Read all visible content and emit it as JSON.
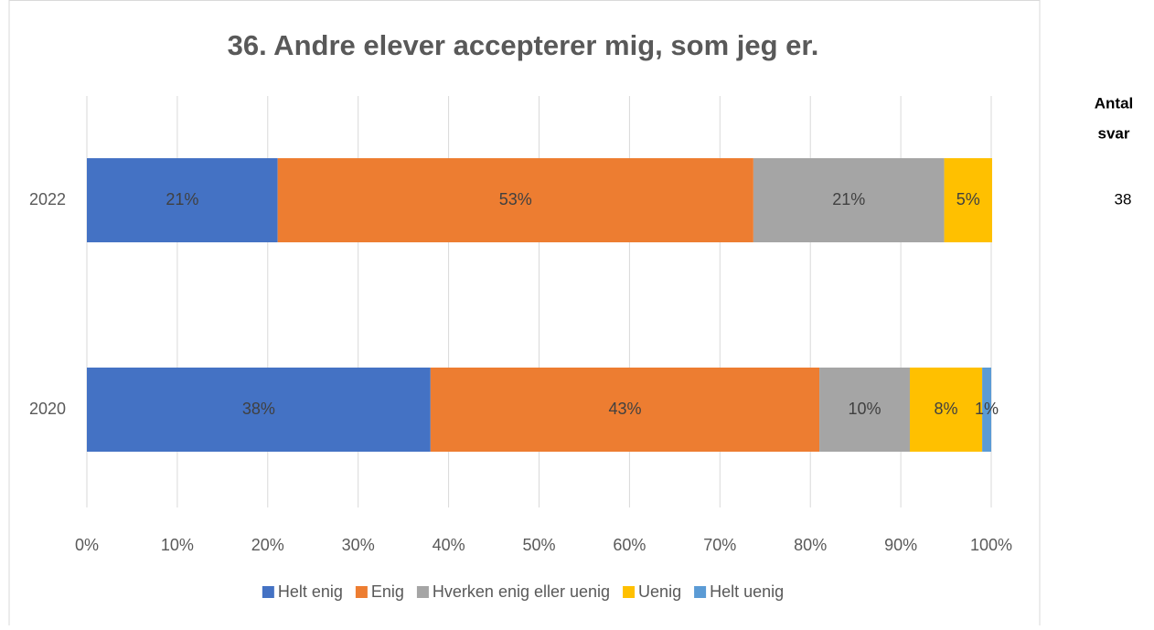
{
  "chart_data": {
    "type": "stacked_bar_horizontal",
    "title": "36. Andre elever accepterer mig, som jeg er.",
    "categories": [
      "2022",
      "2020"
    ],
    "series": [
      {
        "name": "Helt enig",
        "color": "#4472c4",
        "values": [
          21.1,
          38
        ],
        "value_labels": [
          "21%",
          "38%"
        ]
      },
      {
        "name": "Enig",
        "color": "#ed7d31",
        "values": [
          52.6,
          43
        ],
        "value_labels": [
          "53%",
          "43%"
        ]
      },
      {
        "name": "Hverken enig eller uenig",
        "color": "#a5a5a5",
        "values": [
          21.1,
          10
        ],
        "value_labels": [
          "21%",
          "10%"
        ]
      },
      {
        "name": "Uenig",
        "color": "#ffc000",
        "values": [
          5.3,
          8
        ],
        "value_labels": [
          "5%",
          "8%"
        ]
      },
      {
        "name": "Helt uenig",
        "color": "#5b9bd5",
        "values": [
          0,
          1
        ],
        "value_labels": [
          null,
          "1%"
        ]
      }
    ],
    "xlim": [
      0,
      100
    ],
    "xticks": [
      {
        "value": 0,
        "label": "0%"
      },
      {
        "value": 10,
        "label": "10%"
      },
      {
        "value": 20,
        "label": "20%"
      },
      {
        "value": 30,
        "label": "30%"
      },
      {
        "value": 40,
        "label": "40%"
      },
      {
        "value": 50,
        "label": "50%"
      },
      {
        "value": 60,
        "label": "60%"
      },
      {
        "value": 70,
        "label": "70%"
      },
      {
        "value": 80,
        "label": "80%"
      },
      {
        "value": 90,
        "label": "90%"
      },
      {
        "value": 100,
        "label": "100%"
      }
    ],
    "grid": true,
    "legend": "bottom",
    "side_column": {
      "title": [
        "Antal",
        "svar"
      ],
      "values": [
        38,
        null
      ]
    }
  }
}
